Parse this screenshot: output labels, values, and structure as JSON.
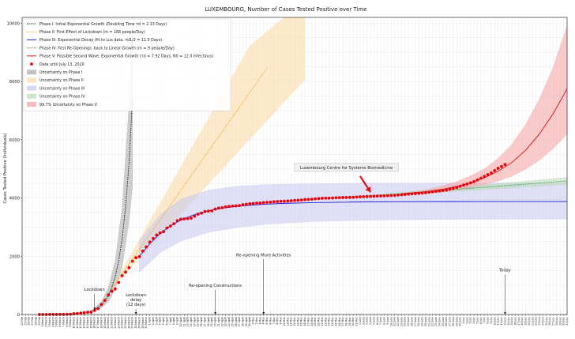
{
  "chart_data": {
    "type": "line",
    "title": "LUXEMBOURG, Number of Cases Tested Positive over Time",
    "ylabel": "Cases Tested Positive (Individuals)",
    "xlabel": "",
    "ylim": [
      0,
      10200
    ],
    "yticks": [
      0,
      2000,
      4000,
      6000,
      8000,
      10000
    ],
    "grid": true,
    "legend_position": "top-left",
    "x_tick_labels": [
      "24 Feb",
      "25 Feb",
      "26 Feb",
      "27 Feb",
      "28 Feb",
      "29 Feb",
      "1 March",
      "2 March",
      "3 March",
      "4 March",
      "5 March",
      "6 March",
      "7 March",
      "8 March",
      "9 March",
      "10 March",
      "11 March",
      "12 March",
      "13 March",
      "14 March",
      "15 March",
      "16 March",
      "17 March",
      "18 March",
      "19 March",
      "20 March",
      "21 March",
      "22 March",
      "23 March",
      "24 March",
      "25 March",
      "26 March",
      "27 March",
      "28 March",
      "29 March",
      "30 March",
      "31 March",
      "1 April",
      "2 April",
      "3 April",
      "4 April",
      "5 April",
      "6 April",
      "7 April",
      "8 April",
      "9 April",
      "10 April",
      "11 April",
      "12 April",
      "13 April",
      "14 April",
      "15 April",
      "16 April",
      "17 April",
      "18 April",
      "19 April",
      "20 April",
      "21 April",
      "22 April",
      "23 April",
      "24 April",
      "25 April",
      "26 April",
      "27 April",
      "28 April",
      "29 April",
      "30 April",
      "1 May",
      "2 May",
      "3 May",
      "4 May",
      "5 May",
      "6 May",
      "7 May",
      "8 May",
      "9 May",
      "10 May",
      "11 May",
      "12 May",
      "13 May",
      "14 May",
      "15 May",
      "16 May",
      "17 May",
      "18 May",
      "19 May",
      "20 May",
      "21 May",
      "22 May",
      "23 May",
      "24 May",
      "25 May",
      "26 May",
      "27 May",
      "28 May",
      "29 May",
      "30 May",
      "31 May",
      "1 June",
      "2 June",
      "3 June",
      "4 June",
      "5 June",
      "6 June",
      "7 June",
      "8 June",
      "9 June",
      "10 June",
      "11 June",
      "12 June",
      "13 June",
      "14 June",
      "15 June",
      "16 June",
      "17 June",
      "18 June",
      "19 June",
      "20 June",
      "21 June",
      "22 June",
      "23 June",
      "24 June",
      "25 June",
      "26 June",
      "27 June",
      "28 June",
      "29 June",
      "30 June",
      "1 July",
      "2 July",
      "3 July",
      "4 July",
      "5 July",
      "6 July",
      "7 July",
      "8 July",
      "9 July",
      "10 July",
      "11 July",
      "12 July",
      "13 July",
      "14 July",
      "15 July",
      "16 July",
      "17 July",
      "18 July",
      "19 July",
      "20 July",
      "21 July",
      "22 July",
      "23 July",
      "24 July",
      "25 July",
      "26 July",
      "27 July",
      "28 July",
      "29 July",
      "30 July",
      "31 July"
    ],
    "series": [
      {
        "name": "Data until July 13, 2020",
        "kind": "points",
        "color": "#e8000b",
        "x": [
          "29 Feb",
          "1 March",
          "2 March",
          "3 March",
          "4 March",
          "5 March",
          "6 March",
          "7 March",
          "8 March",
          "9 March",
          "10 March",
          "11 March",
          "12 March",
          "13 March",
          "14 March",
          "15 March",
          "16 March",
          "17 March",
          "18 March",
          "19 March",
          "20 March",
          "21 March",
          "22 March",
          "23 March",
          "24 March",
          "25 March",
          "26 March",
          "27 March",
          "28 March",
          "29 March",
          "30 March",
          "31 March",
          "1 April",
          "2 April",
          "3 April",
          "4 April",
          "5 April",
          "6 April",
          "7 April",
          "8 April",
          "9 April",
          "10 April",
          "11 April",
          "12 April",
          "13 April",
          "14 April",
          "15 April",
          "16 April",
          "17 April",
          "18 April",
          "19 April",
          "20 April",
          "21 April",
          "22 April",
          "23 April",
          "24 April",
          "25 April",
          "26 April",
          "27 April",
          "28 April",
          "29 April",
          "30 April",
          "1 May",
          "2 May",
          "3 May",
          "4 May",
          "5 May",
          "6 May",
          "7 May",
          "8 May",
          "9 May",
          "10 May",
          "11 May",
          "12 May",
          "13 May",
          "14 May",
          "15 May",
          "16 May",
          "17 May",
          "18 May",
          "19 May",
          "20 May",
          "21 May",
          "22 May",
          "23 May",
          "24 May",
          "25 May",
          "26 May",
          "27 May",
          "28 May",
          "29 May",
          "30 May",
          "31 May",
          "1 June",
          "2 June",
          "3 June",
          "4 June",
          "5 June",
          "6 June",
          "7 June",
          "8 June",
          "9 June",
          "10 June",
          "11 June",
          "12 June",
          "13 June",
          "14 June",
          "15 June",
          "16 June",
          "17 June",
          "18 June",
          "19 June",
          "20 June",
          "21 June",
          "22 June",
          "23 June",
          "24 June",
          "25 June",
          "26 June",
          "27 June",
          "28 June",
          "29 June",
          "30 June",
          "1 July",
          "2 July",
          "3 July",
          "4 July",
          "5 July",
          "6 July",
          "7 July",
          "8 July",
          "9 July",
          "10 July",
          "11 July",
          "12 July",
          "13 July"
        ],
        "y": [
          1,
          1,
          1,
          2,
          2,
          3,
          4,
          5,
          7,
          10,
          26,
          34,
          51,
          59,
          77,
          81,
          140,
          203,
          345,
          484,
          670,
          798,
          875,
          1099,
          1333,
          1453,
          1605,
          1831,
          1950,
          1988,
          2178,
          2319,
          2487,
          2612,
          2729,
          2804,
          2843,
          2970,
          3034,
          3115,
          3223,
          3270,
          3281,
          3292,
          3307,
          3373,
          3444,
          3480,
          3537,
          3550,
          3558,
          3618,
          3654,
          3665,
          3695,
          3711,
          3723,
          3729,
          3741,
          3769,
          3784,
          3802,
          3812,
          3824,
          3828,
          3840,
          3851,
          3859,
          3871,
          3877,
          3886,
          3888,
          3894,
          3904,
          3915,
          3923,
          3930,
          3945,
          3951,
          3958,
          3971,
          3980,
          3990,
          3993,
          3995,
          4000,
          4008,
          4012,
          4016,
          4018,
          4020,
          4024,
          4032,
          4040,
          4046,
          4050,
          4055,
          4060,
          4065,
          4070,
          4075,
          4080,
          4085,
          4090,
          4100,
          4110,
          4120,
          4133,
          4140,
          4152,
          4160,
          4170,
          4180,
          4197,
          4212,
          4225,
          4240,
          4255,
          4270,
          4300,
          4330,
          4360,
          4400,
          4440,
          4480,
          4520,
          4560,
          4620,
          4680,
          4740,
          4800,
          4860,
          4940,
          5020,
          5080,
          5150
        ]
      },
      {
        "name": "Phase I: Initial Exponential Growth (Doubling Time τd = 2.13 Days)",
        "kind": "line",
        "color": "#000000",
        "dash": "1.2,1.2",
        "x": [
          "29 Feb",
          "3 March",
          "6 March",
          "9 March",
          "12 March",
          "14 March",
          "16 March",
          "18 March",
          "19 March",
          "20 March",
          "21 March",
          "22 March",
          "23 March",
          "24 March",
          "25 March",
          "26 March",
          "27 March"
        ],
        "y": [
          1,
          2,
          6,
          16,
          44,
          85,
          170,
          320,
          470,
          660,
          930,
          1300,
          1850,
          2600,
          3700,
          5200,
          7400
        ]
      },
      {
        "name": "Phase II: First Effect of Lockdown (m = 168 people/Day)",
        "kind": "line",
        "color": "#f5a623",
        "dash": "2,1.5",
        "x": [
          "21 March",
          "31 March",
          "10 April",
          "20 April",
          "30 April",
          "5 May"
        ],
        "y": [
          900,
          2580,
          4260,
          5940,
          7620,
          8460
        ]
      },
      {
        "name": "Phase III: Exponential Decay (fit to Lux data, τd1/2 = 11.0 Days)",
        "kind": "line",
        "color": "#2020d0",
        "dash": "",
        "x": [
          "29 March",
          "1 April",
          "4 April",
          "7 April",
          "10 April",
          "14 April",
          "18 April",
          "22 April",
          "26 April",
          "30 April",
          "5 May",
          "10 May",
          "18 May",
          "26 May",
          "3 June",
          "11 June",
          "19 June",
          "27 June",
          "5 July",
          "13 July",
          "21 July",
          "31 July"
        ],
        "y": [
          2000,
          2430,
          2780,
          3040,
          3240,
          3430,
          3560,
          3650,
          3710,
          3750,
          3790,
          3815,
          3840,
          3855,
          3865,
          3870,
          3874,
          3876,
          3877,
          3878,
          3878,
          3878
        ]
      },
      {
        "name": "Phase IV: First Re-Openings: back to Linear Growth (m = 9 people/Day)",
        "kind": "line",
        "color": "#2a9d3a",
        "dash": "1.2,1",
        "x": [
          "26 May",
          "5 June",
          "15 June",
          "25 June",
          "5 July",
          "15 July",
          "25 July",
          "31 July"
        ],
        "y": [
          3990,
          4080,
          4170,
          4260,
          4350,
          4440,
          4530,
          4584
        ]
      },
      {
        "name": "Phase V: Possible Second Wave, Exponential Growth (τd = 7.92 Days, N0 = 12.0 Infectious)",
        "kind": "line",
        "color": "#d01010",
        "dash": "",
        "x": [
          "13 June",
          "17 June",
          "21 June",
          "25 June",
          "29 June",
          "3 July",
          "7 July",
          "11 July",
          "15 July",
          "19 July",
          "23 July",
          "27 July",
          "31 July"
        ],
        "y": [
          4140,
          4180,
          4230,
          4300,
          4400,
          4520,
          4690,
          4920,
          5220,
          5640,
          6200,
          6900,
          7750
        ]
      }
    ],
    "bands": [
      {
        "name": "Uncertainty on Phase I",
        "color": "#a8a8a8",
        "x": [
          "16 March",
          "18 March",
          "20 March",
          "22 March",
          "24 March",
          "26 March",
          "27 March"
        ],
        "lower": [
          120,
          230,
          440,
          850,
          1650,
          3200,
          4400
        ],
        "upper": [
          240,
          440,
          920,
          1850,
          3650,
          7200,
          10200
        ]
      },
      {
        "name": "Uncertainty on Phase II",
        "color": "#fbd9a3",
        "x": [
          "21 March",
          "31 March",
          "10 April",
          "20 April",
          "30 April",
          "10 May",
          "16 May"
        ],
        "lower": [
          900,
          2180,
          3460,
          4740,
          6020,
          7300,
          8068
        ],
        "upper": [
          900,
          2980,
          5060,
          7140,
          9220,
          10200,
          10200
        ]
      },
      {
        "name": "Uncertainty on Phase III",
        "color": "#c7c7ee",
        "x": [
          "29 March",
          "4 April",
          "10 April",
          "18 April",
          "26 April",
          "5 May",
          "18 May",
          "3 June",
          "19 June",
          "5 July",
          "21 July",
          "31 July"
        ],
        "lower": [
          1450,
          2120,
          2520,
          2820,
          2980,
          3100,
          3190,
          3240,
          3260,
          3270,
          3275,
          3277
        ],
        "upper": [
          2550,
          3420,
          3960,
          4270,
          4400,
          4460,
          4490,
          4505,
          4512,
          4515,
          4516,
          4517
        ]
      },
      {
        "name": "Uncertainty on Phase IV",
        "color": "#b8d9b8",
        "x": [
          "26 May",
          "10 June",
          "25 June",
          "10 July",
          "25 July",
          "31 July"
        ],
        "lower": [
          3980,
          4090,
          4200,
          4310,
          4420,
          4464
        ],
        "upper": [
          4000,
          4160,
          4320,
          4480,
          4640,
          4704
        ]
      },
      {
        "name": "99.7% Uncertainty on Phase V",
        "color": "#f4a0a0",
        "x": [
          "13 June",
          "17 June",
          "21 June",
          "25 June",
          "29 June",
          "3 July",
          "7 July",
          "11 July",
          "15 July",
          "19 July",
          "23 July",
          "27 July",
          "31 July"
        ],
        "lower": [
          4120,
          4150,
          4180,
          4220,
          4280,
          4360,
          4460,
          4580,
          4750,
          4990,
          5300,
          5700,
          6200
        ],
        "upper": [
          4160,
          4220,
          4300,
          4420,
          4560,
          4760,
          5000,
          5360,
          5840,
          6520,
          7400,
          8500,
          9900
        ]
      }
    ],
    "reference_lines": [
      {
        "name": "phase-iii-plateau",
        "y": 3878,
        "color": "#4444ff",
        "dash": "1,1.2",
        "from": "29 May",
        "to": "31 July"
      }
    ],
    "annotations": [
      {
        "text": "Lockdown",
        "x": "16 March",
        "y_text": 820,
        "y_tip": 150
      },
      {
        "text": "Lockdown\ndelay\n(12 days)",
        "x": "28 March",
        "y_text": 620,
        "y_tip": 0
      },
      {
        "text": "Re-opening Constructions",
        "x": "20 April",
        "y_text": 950,
        "y_tip": 0
      },
      {
        "text": "Re-opening More Activities",
        "x": "4 May",
        "y_text": 2000,
        "y_tip": 0
      },
      {
        "text": "Today",
        "x": "13 July",
        "y_text": 1480,
        "y_tip": 0
      }
    ],
    "watermark": "Luxembourg Centre for Systems Biomedicine",
    "marker_arrow": {
      "color": "#e0101a",
      "x_from": "1 June",
      "y_from": 4750,
      "x_to": "4 June",
      "y_to": 4200
    }
  }
}
